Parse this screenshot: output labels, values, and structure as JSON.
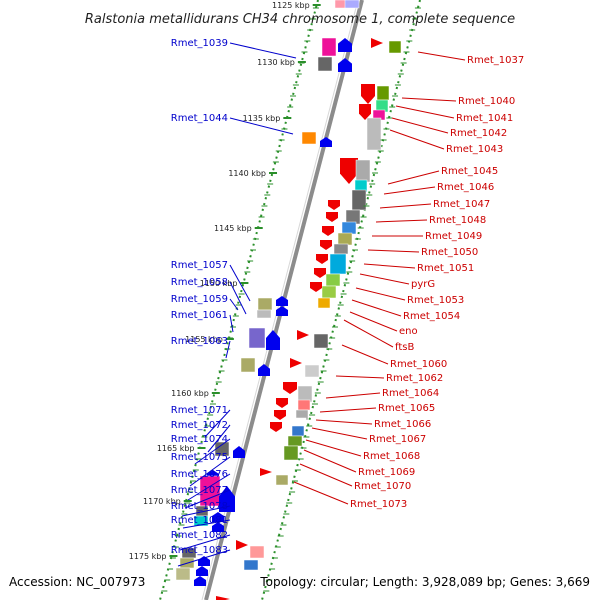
{
  "title": "Ralstonia metallidurans CH34 chromosome 1, complete sequence",
  "footer": {
    "accession": "Accession: NC_007973",
    "summary": "Topology: circular; Length: 3,928,089 bp; Genes: 3,669"
  },
  "colors": {
    "left_label": "#0000cc",
    "right_label": "#cc0000",
    "backbone": "#8c8c8c",
    "tick": "#2a8f2a"
  },
  "kbp_ticks": [
    "1125 kbp",
    "1130 kbp",
    "1135 kbp",
    "1140 kbp",
    "1145 kbp",
    "1150 kbp",
    "1155 kbp",
    "1160 kbp",
    "1165 kbp",
    "1170 kbp",
    "1175 kbp"
  ],
  "left_genes": [
    "Rmet_1039",
    "Rmet_1044",
    "Rmet_1057",
    "Rmet_1058",
    "Rmet_1059",
    "Rmet_1061",
    "Rmet_1063",
    "Rmet_1071",
    "Rmet_1072",
    "Rmet_1074",
    "Rmet_1075",
    "Rmet_1076",
    "Rmet_1077",
    "Rmet_1078",
    "Rmet_1081",
    "Rmet_1082",
    "Rmet_1083"
  ],
  "right_genes": [
    "Rmet_1037",
    "Rmet_1040",
    "Rmet_1041",
    "Rmet_1042",
    "Rmet_1043",
    "Rmet_1045",
    "Rmet_1046",
    "Rmet_1047",
    "Rmet_1048",
    "Rmet_1049",
    "Rmet_1050",
    "Rmet_1051",
    "pyrG",
    "Rmet_1053",
    "Rmet_1054",
    "eno",
    "ftsB",
    "Rmet_1060",
    "Rmet_1062",
    "Rmet_1064",
    "Rmet_1065",
    "Rmet_1066",
    "Rmet_1067",
    "Rmet_1068",
    "Rmet_1069",
    "Rmet_1070",
    "Rmet_1073"
  ]
}
